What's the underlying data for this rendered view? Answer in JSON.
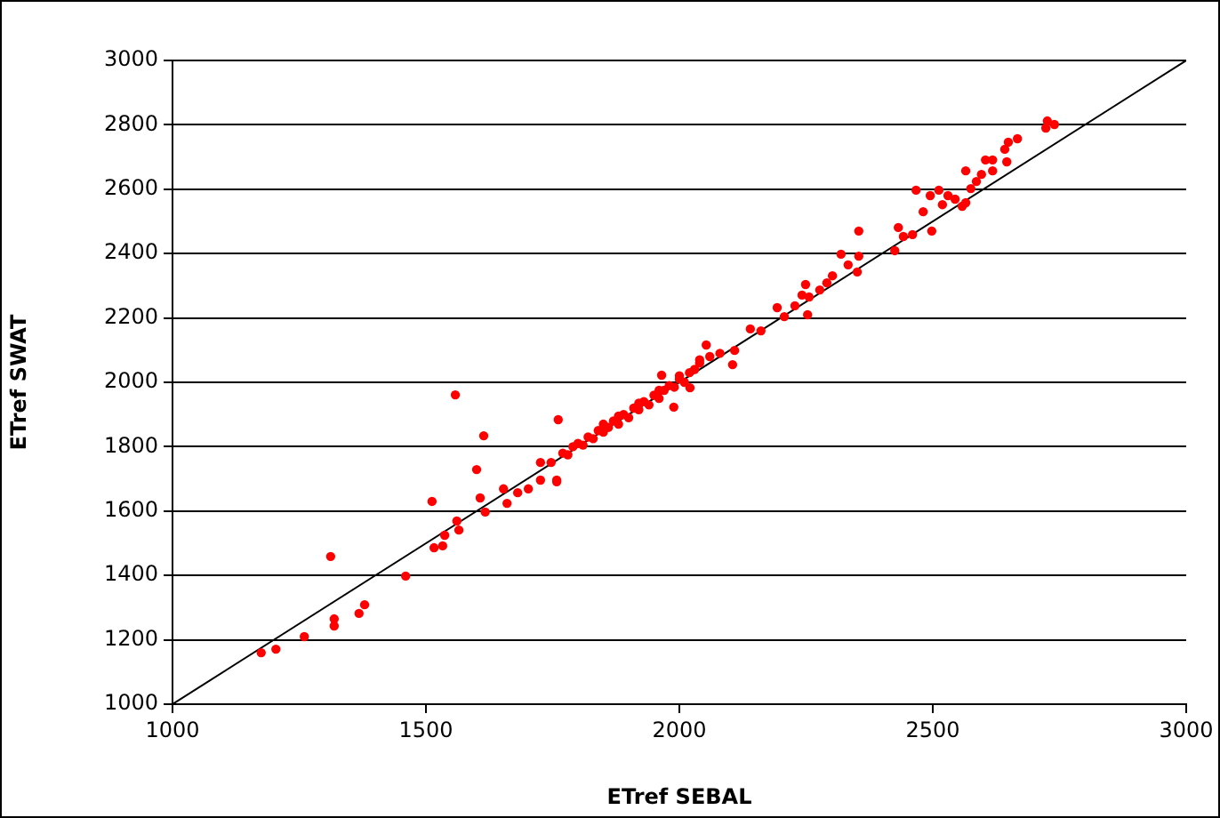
{
  "chart_data": {
    "type": "scatter",
    "xlabel": "ETref SEBAL",
    "ylabel": "ETref SWAT",
    "xlim": [
      1000,
      3000
    ],
    "ylim": [
      1000,
      3000
    ],
    "xticks": [
      1000,
      1500,
      2000,
      2500,
      3000
    ],
    "yticks": [
      1000,
      1200,
      1400,
      1600,
      1800,
      2000,
      2200,
      2400,
      2600,
      2800,
      3000
    ],
    "grid": "y",
    "legend": false,
    "marker": "circle",
    "series": [
      {
        "color": "#ff0000",
        "x": [
          1175,
          1204,
          1260,
          1312,
          1319,
          1319,
          1368,
          1379,
          1460,
          1512,
          1516,
          1533,
          1537,
          1561,
          1565,
          1558,
          1614,
          1600,
          1607,
          1617,
          1660,
          1653,
          1681,
          1702,
          1726,
          1758,
          1747,
          1761,
          1726,
          1758,
          1770,
          1780,
          1790,
          1800,
          1810,
          1820,
          1830,
          1840,
          1850,
          1860,
          1870,
          1880,
          1890,
          1900,
          1910,
          1920,
          1930,
          1940,
          1950,
          1960,
          1970,
          1980,
          1990,
          2000,
          2010,
          2020,
          2030,
          2040,
          2060,
          2080,
          1850,
          1880,
          1920,
          1960,
          2000,
          2040,
          1989,
          2021,
          1965,
          2053,
          2105,
          2109,
          2140,
          2161,
          2193,
          2207,
          2228,
          2242,
          2249,
          2253,
          2256,
          2277,
          2291,
          2302,
          2319,
          2333,
          2351,
          2354,
          2354,
          2425,
          2432,
          2442,
          2460,
          2481,
          2498,
          2467,
          2495,
          2512,
          2519,
          2530,
          2544,
          2558,
          2565,
          2575,
          2586,
          2596,
          2604,
          2618,
          2618,
          2565,
          2642,
          2649,
          2667,
          2646,
          2723,
          2726,
          2740
        ],
        "values": [
          1160,
          1171,
          1210,
          1459,
          1265,
          1243,
          1282,
          1309,
          1398,
          1630,
          1486,
          1492,
          1525,
          1569,
          1541,
          1961,
          1834,
          1729,
          1641,
          1597,
          1624,
          1669,
          1657,
          1669,
          1696,
          1691,
          1751,
          1884,
          1751,
          1696,
          1780,
          1775,
          1800,
          1810,
          1805,
          1830,
          1825,
          1850,
          1845,
          1860,
          1880,
          1870,
          1900,
          1890,
          1920,
          1915,
          1940,
          1930,
          1960,
          1950,
          1975,
          1990,
          1985,
          2010,
          2000,
          2030,
          2040,
          2060,
          2080,
          2090,
          1870,
          1895,
          1935,
          1975,
          2020,
          2070,
          1923,
          1983,
          2022,
          2116,
          2055,
          2099,
          2166,
          2160,
          2232,
          2204,
          2238,
          2271,
          2304,
          2210,
          2265,
          2287,
          2309,
          2331,
          2398,
          2365,
          2343,
          2470,
          2392,
          2409,
          2481,
          2453,
          2459,
          2530,
          2470,
          2597,
          2580,
          2597,
          2552,
          2580,
          2569,
          2547,
          2558,
          2602,
          2624,
          2646,
          2691,
          2657,
          2691,
          2657,
          2724,
          2746,
          2757,
          2685,
          2790,
          2812,
          2801
        ]
      },
      {
        "type": "line",
        "color": "#000000",
        "marker": "none",
        "x": [
          1000,
          3000
        ],
        "values": [
          1000,
          3000
        ]
      }
    ]
  }
}
